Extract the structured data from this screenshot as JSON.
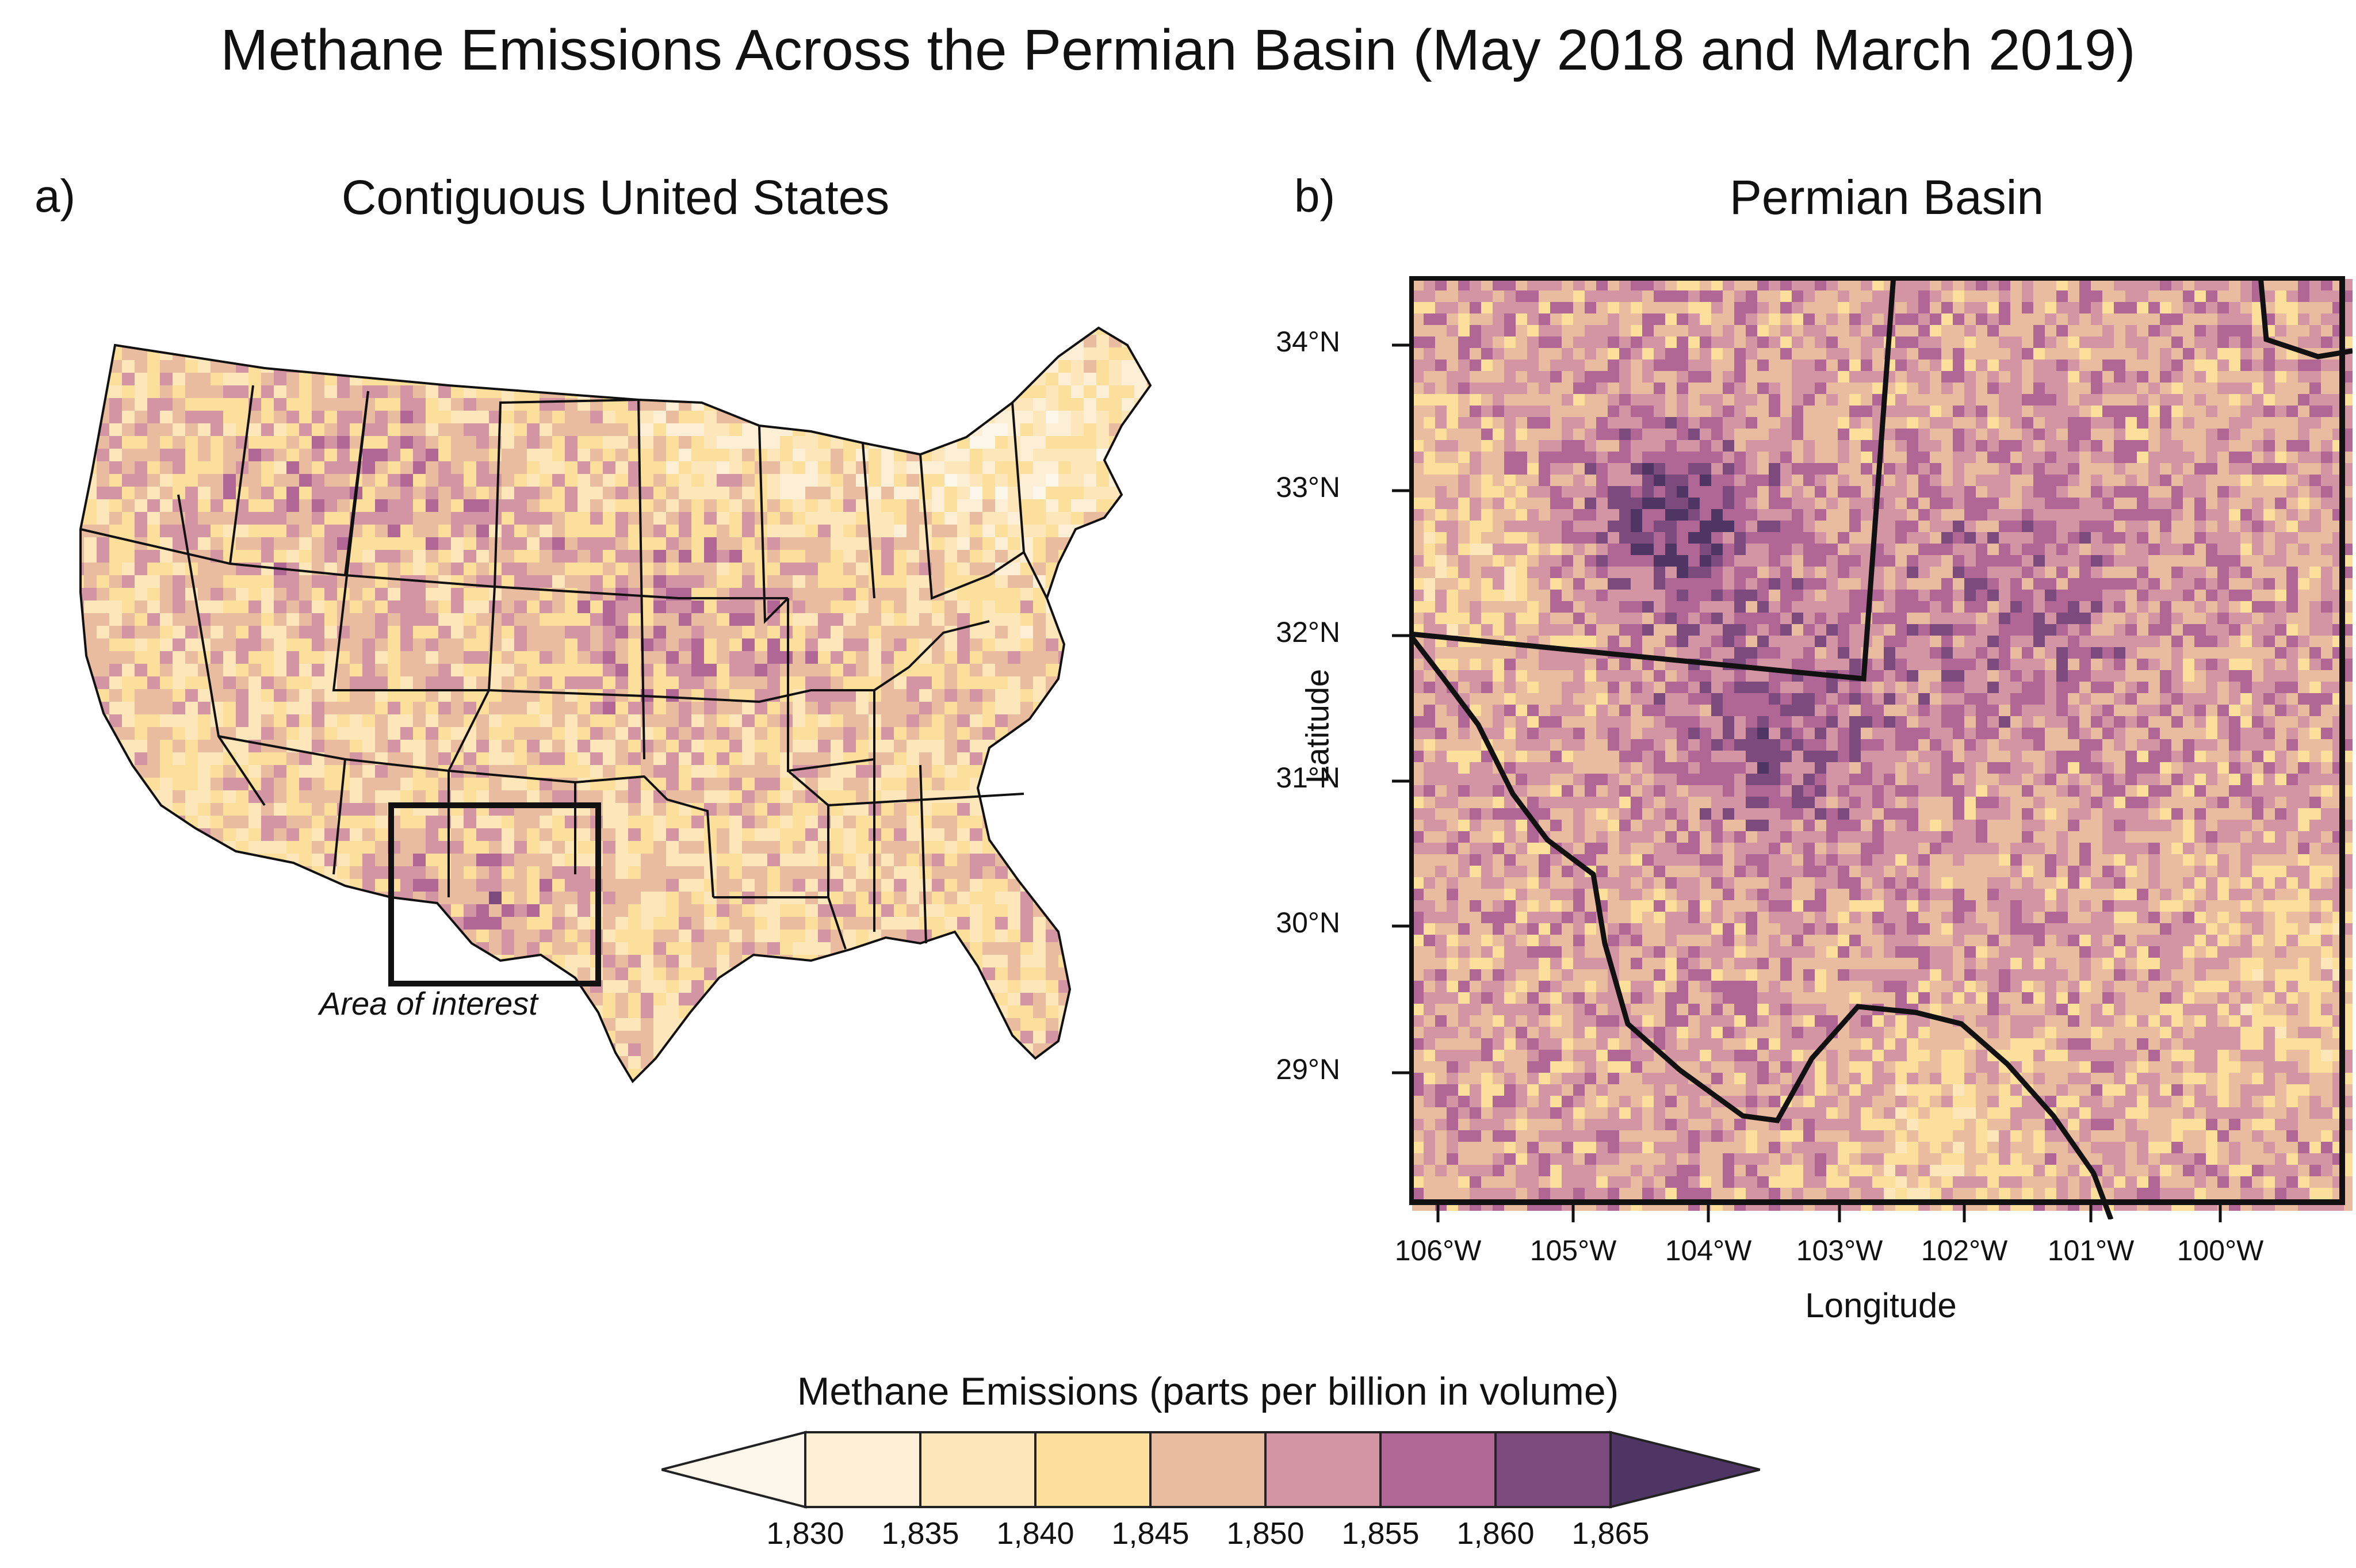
{
  "title": "Methane Emissions Across the Permian Basin (May 2018 and March 2019)",
  "panel_a": {
    "label": "a)",
    "title": "Contiguous United States",
    "annotation": "Area of interest"
  },
  "panel_b": {
    "label": "b)",
    "title": "Permian Basin",
    "xlabel": "Longitude",
    "ylabel": "Latitude",
    "x_ticks": [
      "106°W",
      "105°W",
      "104°W",
      "103°W",
      "102°W",
      "101°W",
      "100°W"
    ],
    "y_ticks": [
      "34°N",
      "33°N",
      "32°N",
      "31°N",
      "30°N",
      "29°N"
    ]
  },
  "colorbar": {
    "title": "Methane Emissions (parts per billion in volume)",
    "ticks": [
      "1,830",
      "1,835",
      "1,840",
      "1,845",
      "1,850",
      "1,855",
      "1,860",
      "1,865"
    ],
    "colors": [
      "#fdf6ea",
      "#fcefd6",
      "#fde6b9",
      "#fddf9c",
      "#e9bca0",
      "#d395a4",
      "#b06796",
      "#7c4a7d",
      "#4e3563"
    ]
  }
}
